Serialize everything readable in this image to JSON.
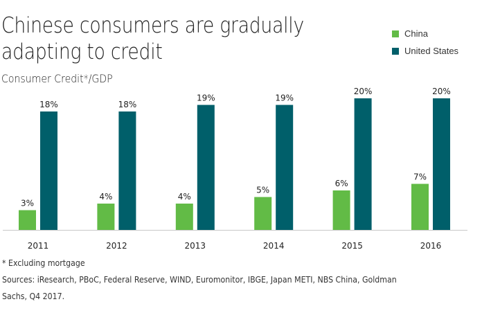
{
  "chart_data": {
    "type": "bar",
    "title": "Chinese consumers are gradually adapting to credit",
    "subtitle": "Consumer Credit*/GDP",
    "xlabel": "",
    "ylabel": "",
    "ylim": [
      0,
      20
    ],
    "grid": false,
    "legend_position": "top-right",
    "categories": [
      "2011",
      "2012",
      "2013",
      "2014",
      "2015",
      "2016"
    ],
    "series": [
      {
        "name": "China",
        "color": "#62bb46",
        "values": [
          3,
          4,
          4,
          5,
          6,
          7
        ],
        "labels": [
          "3%",
          "4%",
          "4%",
          "5%",
          "6%",
          "7%"
        ]
      },
      {
        "name": "United States",
        "color": "#005f6a",
        "values": [
          18,
          18,
          19,
          19,
          20,
          20
        ],
        "labels": [
          "18%",
          "18%",
          "19%",
          "19%",
          "20%",
          "20%"
        ]
      }
    ]
  },
  "legend": [
    {
      "label": "China",
      "color": "#62bb46"
    },
    {
      "label": "United States",
      "color": "#005f6a"
    }
  ],
  "footnotes": {
    "note": "* Excluding mortgage",
    "sources_line1": "Sources: iResearch, PBoC, Federal Reserve, WIND, Euromonitor, IBGE, Japan METI, NBS China, Goldman",
    "sources_line2": "Sachs, Q4 2017."
  }
}
